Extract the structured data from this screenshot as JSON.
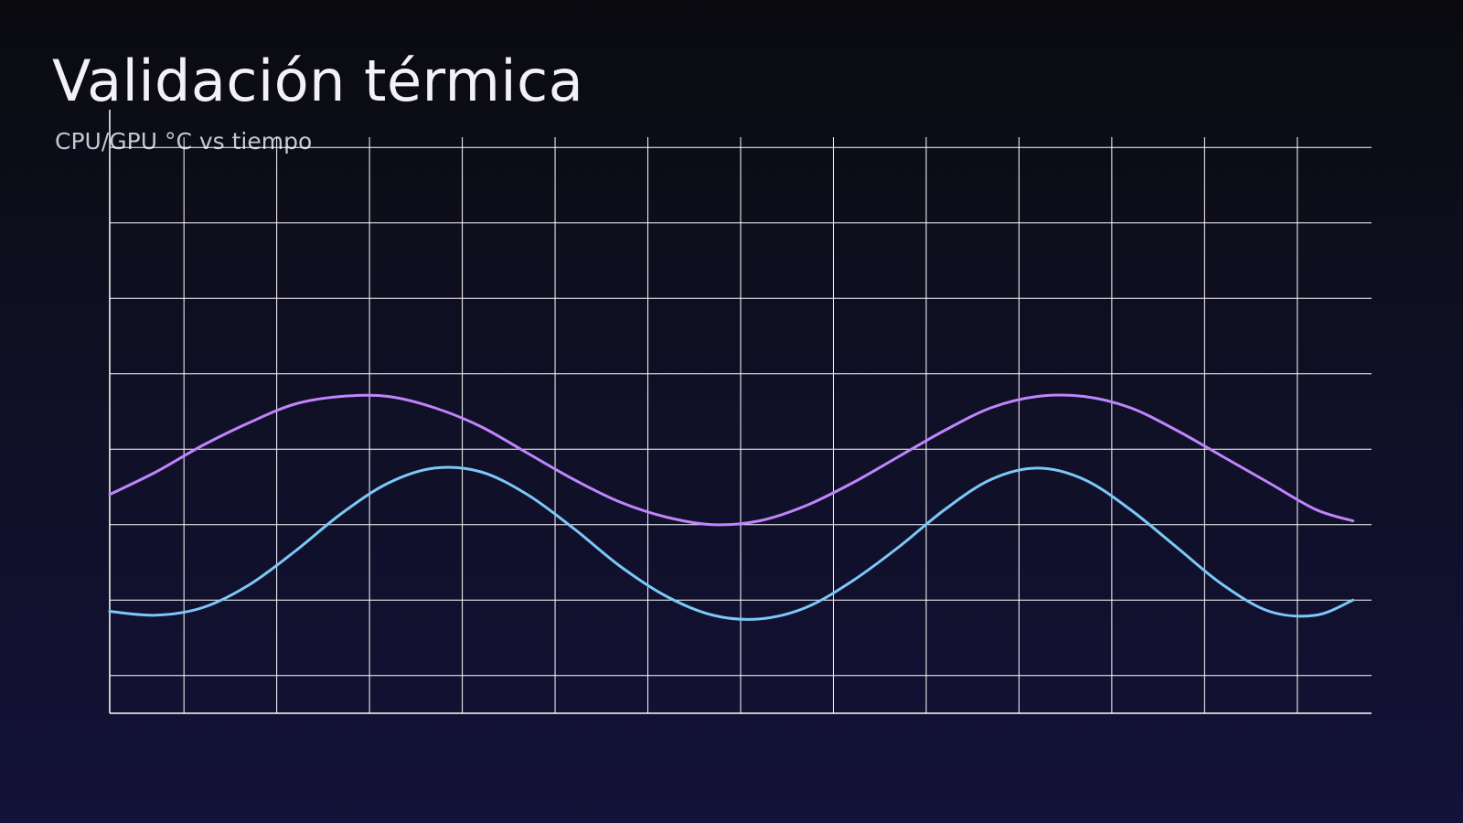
{
  "title": "Validación térmica",
  "subtitle": "CPU/GPU °C vs tiempo",
  "colors": {
    "background_top": "#0a0a0f",
    "background_bottom": "#131238",
    "grid": "#ffffff",
    "series_1": "#c084fc",
    "series_2": "#7cc8f8"
  },
  "chart_data": {
    "type": "line",
    "title": "Validación térmica",
    "subtitle": "CPU/GPU °C vs tiempo",
    "xlabel": "",
    "ylabel": "",
    "grid": true,
    "legend": "none",
    "xlim": [
      0,
      13.6
    ],
    "ylim": [
      0,
      8
    ],
    "x_gridlines": [
      0.8,
      1.8,
      2.8,
      3.8,
      4.8,
      5.8,
      6.8,
      7.8,
      8.8,
      9.8,
      10.8,
      11.8,
      12.8
    ],
    "y_gridlines": [
      0.5,
      1.5,
      2.5,
      3.5,
      4.5,
      5.5,
      6.5,
      7.5
    ],
    "x": [
      0,
      0.5,
      1,
      1.5,
      2,
      2.5,
      3,
      3.5,
      4,
      4.5,
      5,
      5.5,
      6,
      6.5,
      7,
      7.5,
      8,
      8.5,
      9,
      9.5,
      10,
      10.5,
      11,
      11.5,
      12,
      12.5,
      13,
      13.4
    ],
    "series": [
      {
        "values": [
          2.9,
          3.2,
          3.55,
          3.85,
          4.1,
          4.2,
          4.2,
          4.05,
          3.8,
          3.45,
          3.1,
          2.8,
          2.6,
          2.5,
          2.55,
          2.75,
          3.05,
          3.4,
          3.75,
          4.05,
          4.2,
          4.2,
          4.05,
          3.75,
          3.4,
          3.05,
          2.7,
          2.55
        ]
      },
      {
        "values": [
          1.35,
          1.3,
          1.4,
          1.7,
          2.15,
          2.65,
          3.05,
          3.25,
          3.2,
          2.9,
          2.45,
          1.95,
          1.55,
          1.3,
          1.25,
          1.4,
          1.75,
          2.2,
          2.7,
          3.1,
          3.25,
          3.1,
          2.7,
          2.2,
          1.7,
          1.35,
          1.3,
          1.5
        ]
      }
    ]
  }
}
